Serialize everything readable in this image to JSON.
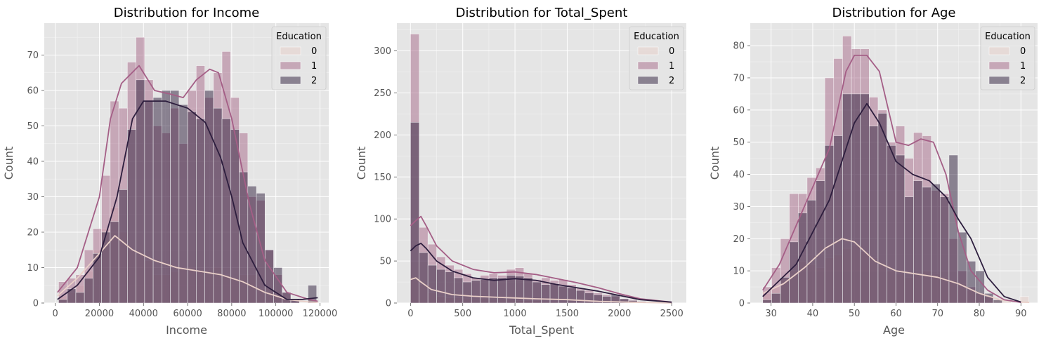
{
  "legend_title": "Education",
  "legend_labels": [
    "0",
    "1",
    "2"
  ],
  "colors": {
    "edu0": "#e8cfc9",
    "edu1": "#a86a8a",
    "edu2": "#2e1e3b",
    "kde0": "#ead0c9",
    "kde1": "#a45e86",
    "kde2": "#2d1e3e",
    "plot_bg": "#e5e5e5",
    "grid": "#ffffff",
    "text": "#555555",
    "title": "#000000"
  },
  "chart_data": [
    {
      "type": "histogram",
      "title": "Distribution for Income",
      "xlabel": "Income",
      "ylabel": "Count",
      "xlim": [
        -5000,
        124000
      ],
      "ylim": [
        0,
        79
      ],
      "xticks": [
        0,
        20000,
        40000,
        60000,
        80000,
        100000,
        120000
      ],
      "xtick_labels": [
        "0",
        "20000",
        "40000",
        "60000",
        "80000",
        "100000",
        "120000"
      ],
      "yticks": [
        0,
        10,
        20,
        30,
        40,
        50,
        60,
        70
      ],
      "ytick_labels": [
        "0",
        "10",
        "20",
        "30",
        "40",
        "50",
        "60",
        "70"
      ],
      "bin_start": 1500,
      "bin_width": 3900,
      "series": [
        {
          "name": "0",
          "values": [
            2,
            3,
            5,
            9,
            15,
            21,
            27,
            20,
            15,
            14,
            12,
            8,
            8,
            9,
            10,
            10,
            9,
            9,
            10,
            8,
            7,
            8,
            8,
            4,
            3,
            2,
            1,
            0,
            0,
            1
          ]
        },
        {
          "name": "1",
          "values": [
            6,
            7,
            8,
            15,
            21,
            36,
            57,
            55,
            68,
            75,
            63,
            50,
            48,
            55,
            45,
            60,
            67,
            58,
            65,
            71,
            58,
            48,
            30,
            29,
            15,
            8,
            3,
            1,
            0,
            0
          ]
        },
        {
          "name": "2",
          "values": [
            1,
            4,
            3,
            7,
            14,
            20,
            23,
            32,
            49,
            63,
            57,
            58,
            60,
            60,
            56,
            54,
            52,
            60,
            55,
            52,
            49,
            37,
            33,
            31,
            15,
            10,
            3,
            1,
            0,
            5
          ]
        }
      ],
      "kde": [
        {
          "name": "0",
          "x": [
            1000,
            10000,
            20000,
            27000,
            35000,
            45000,
            55000,
            65000,
            75000,
            85000,
            95000,
            105000,
            115000,
            119000
          ],
          "y": [
            2,
            7,
            14,
            19,
            15,
            12,
            10,
            9,
            8,
            6,
            3,
            1,
            0.3,
            0.2
          ]
        },
        {
          "name": "1",
          "x": [
            1000,
            10000,
            20000,
            25000,
            30000,
            38000,
            45000,
            52000,
            58000,
            64000,
            70000,
            74000,
            80000,
            88000,
            95000,
            105000,
            115000,
            119000
          ],
          "y": [
            3,
            10,
            30,
            52,
            62,
            67,
            60,
            59,
            58,
            63,
            66,
            65,
            52,
            28,
            12,
            3,
            1,
            0.5
          ]
        },
        {
          "name": "2",
          "x": [
            1000,
            10000,
            20000,
            28000,
            35000,
            40000,
            50000,
            60000,
            68000,
            75000,
            80000,
            85000,
            95000,
            105000,
            112000,
            119000
          ],
          "y": [
            1,
            5,
            13,
            30,
            52,
            57,
            57,
            55,
            51,
            41,
            30,
            17,
            5,
            1,
            1,
            1.5
          ]
        }
      ],
      "legend_position": "upper right"
    },
    {
      "type": "histogram",
      "title": "Distribution for Total_Spent",
      "xlabel": "Total_Spent",
      "ylabel": "Count",
      "xlim": [
        -130,
        2640
      ],
      "ylim": [
        0,
        333
      ],
      "xticks": [
        0,
        500,
        1000,
        1500,
        2000,
        2500
      ],
      "xtick_labels": [
        "0",
        "500",
        "1000",
        "1500",
        "2000",
        "2500"
      ],
      "yticks": [
        0,
        50,
        100,
        150,
        200,
        250,
        300
      ],
      "ytick_labels": [
        "0",
        "50",
        "100",
        "150",
        "200",
        "250",
        "300"
      ],
      "bin_start": 0,
      "bin_width": 83.5,
      "series": [
        {
          "name": "0",
          "values": [
            30,
            22,
            12,
            8,
            6,
            6,
            5,
            4,
            5,
            4,
            5,
            4,
            3,
            3,
            3,
            2,
            2,
            1,
            1,
            1,
            1,
            0,
            0,
            0,
            0,
            0,
            0,
            0,
            0,
            0
          ]
        },
        {
          "name": "1",
          "values": [
            320,
            90,
            70,
            55,
            45,
            40,
            35,
            30,
            33,
            35,
            33,
            40,
            42,
            35,
            28,
            30,
            27,
            28,
            22,
            18,
            15,
            12,
            10,
            8,
            5,
            4,
            2,
            1,
            1,
            0
          ]
        },
        {
          "name": "2",
          "values": [
            215,
            60,
            45,
            40,
            37,
            30,
            25,
            27,
            28,
            30,
            30,
            33,
            32,
            30,
            25,
            22,
            23,
            20,
            18,
            15,
            12,
            10,
            8,
            10,
            5,
            3,
            2,
            1,
            0,
            0
          ]
        }
      ],
      "kde": [
        {
          "name": "0",
          "x": [
            0,
            50,
            100,
            200,
            400,
            600,
            800,
            1000,
            1200,
            1500,
            1800,
            2100,
            2500
          ],
          "y": [
            28,
            30,
            25,
            16,
            10,
            8,
            7,
            6,
            5,
            4,
            2,
            1,
            0
          ]
        },
        {
          "name": "1",
          "x": [
            0,
            50,
            100,
            150,
            250,
            400,
            600,
            800,
            1000,
            1200,
            1400,
            1600,
            1800,
            2000,
            2200,
            2500
          ],
          "y": [
            92,
            98,
            103,
            92,
            68,
            50,
            40,
            36,
            37,
            34,
            29,
            24,
            18,
            11,
            5,
            1
          ]
        },
        {
          "name": "2",
          "x": [
            0,
            50,
            100,
            150,
            250,
            400,
            600,
            800,
            1000,
            1200,
            1400,
            1600,
            1800,
            2000,
            2200,
            2500
          ],
          "y": [
            62,
            68,
            71,
            65,
            50,
            38,
            30,
            27,
            29,
            27,
            22,
            18,
            14,
            9,
            4,
            1
          ]
        }
      ],
      "legend_position": "upper right"
    },
    {
      "type": "histogram",
      "title": "Distribution for Age",
      "xlabel": "Age",
      "ylabel": "Count",
      "xlim": [
        25,
        94
      ],
      "ylim": [
        0,
        87
      ],
      "xticks": [
        30,
        40,
        50,
        60,
        70,
        80,
        90
      ],
      "xtick_labels": [
        "30",
        "40",
        "50",
        "60",
        "70",
        "80",
        "90"
      ],
      "yticks": [
        0,
        10,
        20,
        30,
        40,
        50,
        60,
        70,
        80
      ],
      "ytick_labels": [
        "0",
        "10",
        "20",
        "30",
        "40",
        "50",
        "60",
        "70",
        "80"
      ],
      "bin_start": 28,
      "bin_width": 2.13,
      "series": [
        {
          "name": "0",
          "values": [
            3,
            5,
            7,
            10,
            13,
            12,
            11,
            14,
            15,
            17,
            18,
            16,
            14,
            12,
            10,
            9,
            8,
            9,
            10,
            9,
            8,
            7,
            6,
            4,
            3,
            2,
            1,
            1,
            0,
            2
          ]
        },
        {
          "name": "1",
          "values": [
            5,
            11,
            20,
            34,
            34,
            39,
            42,
            70,
            76,
            83,
            79,
            79,
            64,
            60,
            50,
            55,
            45,
            53,
            52,
            35,
            34,
            20,
            10,
            5,
            3,
            2,
            0,
            0,
            0,
            0
          ]
        },
        {
          "name": "2",
          "values": [
            1,
            3,
            8,
            19,
            28,
            32,
            38,
            49,
            52,
            65,
            65,
            65,
            55,
            59,
            49,
            46,
            33,
            38,
            36,
            37,
            33,
            46,
            22,
            13,
            10,
            3,
            1,
            0,
            0,
            0
          ]
        }
      ],
      "kde": [
        {
          "name": "0",
          "x": [
            28,
            33,
            38,
            43,
            47,
            50,
            55,
            60,
            65,
            70,
            75,
            80,
            85,
            90,
            92
          ],
          "y": [
            3,
            6,
            11,
            17,
            20,
            19,
            13,
            10,
            9,
            8,
            6,
            3,
            1,
            0.3,
            0.2
          ]
        },
        {
          "name": "1",
          "x": [
            28,
            32,
            36,
            40,
            44,
            48,
            50,
            53,
            56,
            60,
            63,
            66,
            69,
            72,
            75,
            78,
            82,
            86,
            90
          ],
          "y": [
            4,
            12,
            24,
            36,
            48,
            72,
            77,
            77,
            72,
            50,
            49,
            51,
            50,
            40,
            22,
            10,
            4,
            1,
            0.2
          ]
        },
        {
          "name": "2",
          "x": [
            28,
            32,
            36,
            40,
            44,
            48,
            50,
            53,
            56,
            60,
            64,
            68,
            72,
            75,
            78,
            82,
            86,
            90
          ],
          "y": [
            2,
            7,
            12,
            22,
            32,
            48,
            56,
            62,
            56,
            44,
            40,
            38,
            33,
            26,
            20,
            8,
            2,
            0.3
          ]
        }
      ],
      "legend_position": "upper right"
    }
  ]
}
